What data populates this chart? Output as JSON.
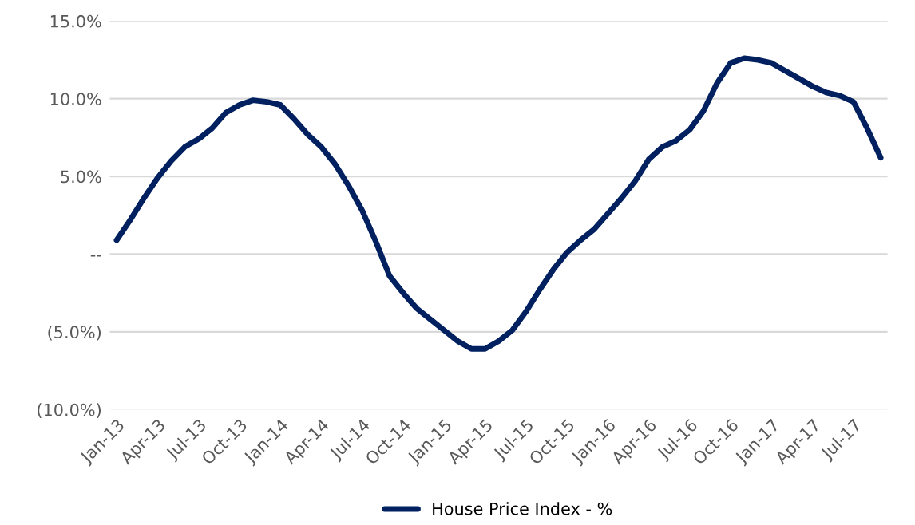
{
  "chart_data": {
    "type": "line",
    "categories": [
      "Jan-13",
      null,
      null,
      "Apr-13",
      null,
      null,
      "Jul-13",
      null,
      null,
      "Oct-13",
      null,
      null,
      "Jan-14",
      null,
      null,
      "Apr-14",
      null,
      null,
      "Jul-14",
      null,
      null,
      "Oct-14",
      null,
      null,
      "Jan-15",
      null,
      null,
      "Apr-15",
      null,
      null,
      "Jul-15",
      null,
      null,
      "Oct-15",
      null,
      null,
      "Jan-16",
      null,
      null,
      "Apr-16",
      null,
      null,
      "Jul-16",
      null,
      null,
      "Oct-16",
      null,
      null,
      "Jan-17",
      null,
      null,
      "Apr-17",
      null,
      null,
      "Jul-17",
      null,
      null
    ],
    "series": [
      {
        "name": "House Price Index - %",
        "color": "#002060",
        "values": [
          0.9,
          2.2,
          3.6,
          4.9,
          6.0,
          6.9,
          7.4,
          8.1,
          9.1,
          9.6,
          9.9,
          9.8,
          9.6,
          8.7,
          7.7,
          6.9,
          5.8,
          4.4,
          2.8,
          0.8,
          -1.4,
          -2.5,
          -3.5,
          -4.2,
          -4.9,
          -5.6,
          -6.1,
          -6.1,
          -5.6,
          -4.9,
          -3.7,
          -2.3,
          -1.0,
          0.1,
          0.9,
          1.6,
          2.6,
          3.6,
          4.7,
          6.1,
          6.9,
          7.3,
          8.0,
          9.2,
          11.0,
          12.3,
          12.6,
          12.5,
          12.3,
          11.8,
          11.3,
          10.8,
          10.4,
          10.2,
          9.8,
          8.1,
          6.2
        ]
      }
    ],
    "ylim": [
      -10,
      15
    ],
    "yticks": [
      {
        "value": -10,
        "label": "(10.0%)"
      },
      {
        "value": -5,
        "label": "(5.0%)"
      },
      {
        "value": 0,
        "label": "--"
      },
      {
        "value": 5,
        "label": "5.0%"
      },
      {
        "value": 10,
        "label": "10.0%"
      },
      {
        "value": 15,
        "label": "15.0%"
      }
    ],
    "grid": "y",
    "legend": "bottom",
    "marker": "none",
    "line_style": "solid"
  }
}
